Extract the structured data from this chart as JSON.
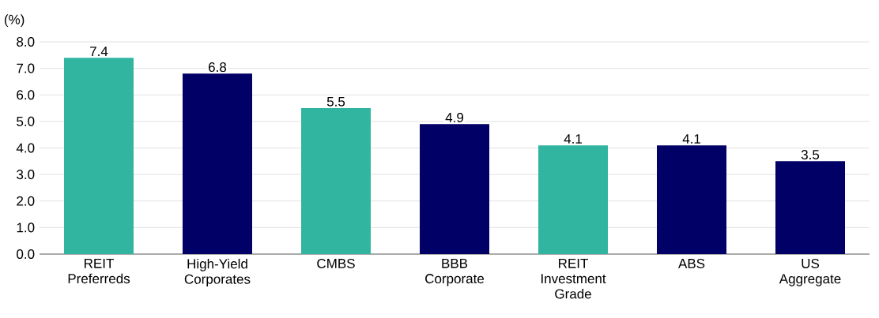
{
  "chart_data": {
    "type": "bar",
    "ylabel": "(%)",
    "categories": [
      "REIT Preferreds",
      "High-Yield Corporates",
      "CMBS",
      "BBB Corporate",
      "REIT Investment Grade",
      "ABS",
      "US Aggregate"
    ],
    "values": [
      7.4,
      6.8,
      5.5,
      4.9,
      4.1,
      4.1,
      3.5
    ],
    "colors": [
      "#31b5a0",
      "#000066",
      "#31b5a0",
      "#000066",
      "#31b5a0",
      "#000066",
      "#000066"
    ],
    "ylim": [
      0,
      8
    ],
    "yticks": [
      {
        "value": 0,
        "label": "0.0"
      },
      {
        "value": 1,
        "label": "1.0"
      },
      {
        "value": 2,
        "label": "2.0"
      },
      {
        "value": 3,
        "label": "3.0"
      },
      {
        "value": 4,
        "label": "4.0"
      },
      {
        "value": 5,
        "label": "5.0"
      },
      {
        "value": 6,
        "label": "6.0"
      },
      {
        "value": 7,
        "label": "7.0"
      },
      {
        "value": 8,
        "label": "8.0"
      }
    ],
    "grid": "y",
    "data_labels": true
  }
}
